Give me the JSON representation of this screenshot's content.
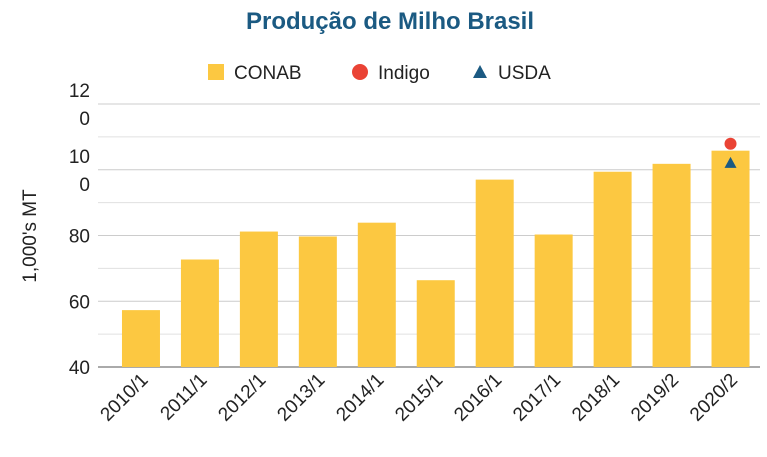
{
  "chart_data": {
    "type": "bar",
    "title": "Produção de Milho Brasil",
    "y_label": "1,000's MT",
    "categories": [
      "2010/1",
      "2011/1",
      "2012/1",
      "2013/1",
      "2014/1",
      "2015/1",
      "2016/1",
      "2017/1",
      "2018/1",
      "2019/2",
      "2020/2"
    ],
    "series": [
      {
        "name": "CONAB",
        "color": "#fcc841",
        "marker": "bar",
        "values": [
          57.3,
          72.7,
          81.2,
          79.7,
          83.9,
          66.4,
          97.0,
          80.3,
          99.4,
          101.8,
          105.8
        ]
      },
      {
        "name": "Indigo",
        "color": "#ea4335",
        "marker": "circle",
        "values": [
          null,
          null,
          null,
          null,
          null,
          null,
          null,
          null,
          null,
          null,
          107.9
        ]
      },
      {
        "name": "USDA",
        "color": "#1b5a82",
        "marker": "triangle",
        "values": [
          null,
          null,
          null,
          null,
          null,
          null,
          null,
          null,
          null,
          null,
          102.1
        ]
      }
    ],
    "ylim": [
      40,
      120
    ],
    "yticks": [
      40,
      60,
      80,
      100,
      120
    ],
    "minor_yticks": [
      50,
      70,
      90,
      110
    ],
    "grid": true
  }
}
